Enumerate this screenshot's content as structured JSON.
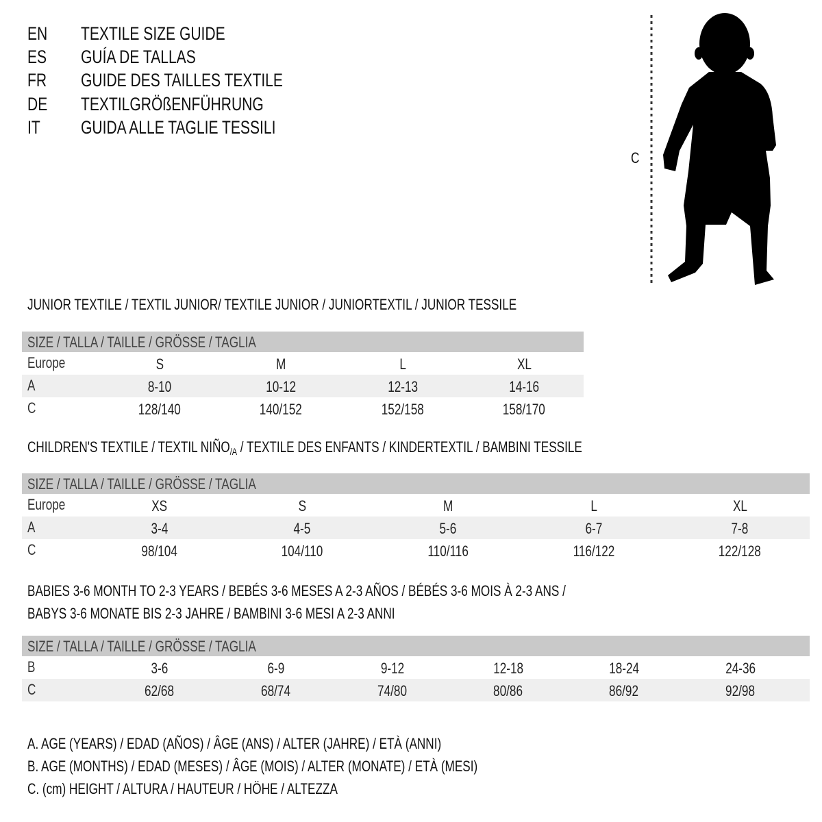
{
  "title_lines": [
    {
      "code": "EN",
      "text": "TEXTILE SIZE GUIDE"
    },
    {
      "code": "ES",
      "text": "GUÍA DE TALLAS"
    },
    {
      "code": "FR",
      "text": "GUIDE DES TAILLES TEXTILE"
    },
    {
      "code": "DE",
      "text": "TEXTILGRÖßENFÜHRUNG"
    },
    {
      "code": "IT",
      "text": "GUIDA ALLE TAGLIE TESSILI"
    }
  ],
  "figure": {
    "label": "C",
    "icon": "child-silhouette"
  },
  "junior": {
    "title": "JUNIOR TEXTILE / TEXTIL JUNIOR/ TEXTILE JUNIOR / JUNIORTEXTIL / JUNIOR TESSILE",
    "header": "SIZE / TALLA / TAILLE / GRÖSSE / TAGLIA",
    "rows": [
      {
        "label": "Europe",
        "values": [
          "S",
          "M",
          "L",
          "XL"
        ]
      },
      {
        "label": "A",
        "values": [
          "8-10",
          "10-12",
          "12-13",
          "14-16"
        ]
      },
      {
        "label": "C",
        "values": [
          "128/140",
          "140/152",
          "152/158",
          "158/170"
        ]
      }
    ]
  },
  "children": {
    "title_a": "CHILDREN'S TEXTILE / TEXTIL NIÑO",
    "title_sub": "/A",
    "title_b": " / TEXTILE DES ENFANTS / KINDERTEXTIL / BAMBINI TESSILE",
    "header": "SIZE / TALLA / TAILLE / GRÖSSE / TAGLIA",
    "rows": [
      {
        "label": "Europe",
        "values": [
          "XS",
          "S",
          "M",
          "L",
          "XL"
        ]
      },
      {
        "label": "A",
        "values": [
          "3-4",
          "4-5",
          "5-6",
          "6-7",
          "7-8"
        ]
      },
      {
        "label": "C",
        "values": [
          "98/104",
          "104/110",
          "110/116",
          "116/122",
          "122/128"
        ]
      }
    ]
  },
  "babies": {
    "title_line1": "BABIES 3-6 MONTH TO 2-3 YEARS / BEBÉS 3-6 MESES A 2-3 AÑOS / BÉBÉS 3-6 MOIS À 2-3 ANS /",
    "title_line2": "BABYS 3-6 MONATE BIS 2-3 JAHRE / BAMBINI 3-6 MESI A 2-3 ANNI",
    "header": "SIZE / TALLA / TAILLE / GRÖSSE / TAGLIA",
    "rows": [
      {
        "label": "B",
        "values": [
          "3-6",
          "6-9",
          "9-12",
          "12-18",
          "18-24",
          "24-36"
        ]
      },
      {
        "label": "C",
        "values": [
          "62/68",
          "68/74",
          "74/80",
          "80/86",
          "86/92",
          "92/98"
        ]
      }
    ]
  },
  "legend": [
    "A. AGE (YEARS) / EDAD (AÑOS) / ÂGE (ANS) / ALTER (JAHRE) / ETÀ (ANNI)",
    "B. AGE (MONTHS) / EDAD (MESES) / ÂGE (MOIS) / ALTER (MONATE) / ETÀ (MESI)",
    "C. (cm) HEIGHT / ALTURA / HAUTEUR / HÖHE / ALTEZZA"
  ],
  "colors": {
    "header_bar": "#c9c9c9",
    "alt_row": "#efefef",
    "text": "#111111"
  }
}
